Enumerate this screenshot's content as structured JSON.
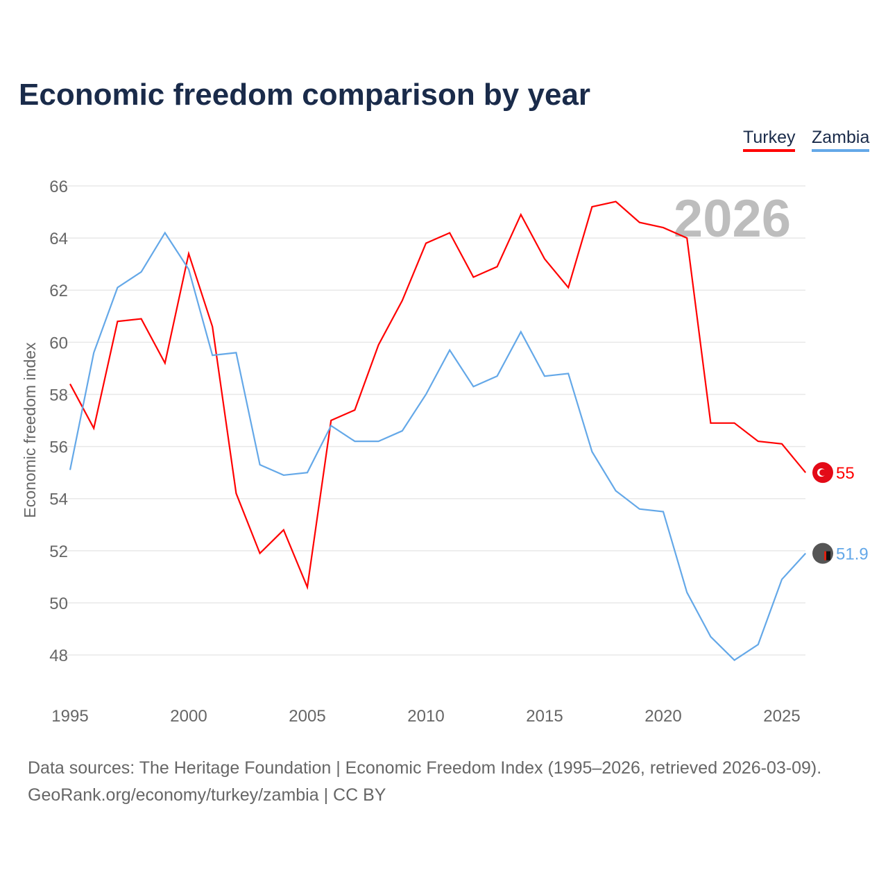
{
  "chart_data": {
    "type": "line",
    "title": "Economic freedom comparison by year",
    "xlabel": "",
    "ylabel": "Economic freedom index",
    "xlim": [
      1995,
      2026
    ],
    "ylim": [
      47,
      66.5
    ],
    "yticks": [
      48,
      50,
      52,
      54,
      56,
      58,
      60,
      62,
      64,
      66
    ],
    "xticks": [
      1995,
      2000,
      2005,
      2010,
      2015,
      2020,
      2025
    ],
    "grid": true,
    "legend_position": "top-right",
    "year_annotation": "2026",
    "x": [
      1995,
      1996,
      1997,
      1998,
      1999,
      2000,
      2001,
      2002,
      2003,
      2004,
      2005,
      2006,
      2007,
      2008,
      2009,
      2010,
      2011,
      2012,
      2013,
      2014,
      2015,
      2016,
      2017,
      2018,
      2019,
      2020,
      2021,
      2022,
      2023,
      2024,
      2025,
      2026
    ],
    "series": [
      {
        "name": "Turkey",
        "color": "#ff0000",
        "end_label": "55",
        "values": [
          58.4,
          56.7,
          60.8,
          60.9,
          59.2,
          63.4,
          60.6,
          54.2,
          51.9,
          52.8,
          50.6,
          57.0,
          57.4,
          59.9,
          61.6,
          63.8,
          64.2,
          62.5,
          62.9,
          64.9,
          63.2,
          62.1,
          65.2,
          65.4,
          64.6,
          64.4,
          64.0,
          56.9,
          56.9,
          56.2,
          56.1,
          55.0
        ]
      },
      {
        "name": "Zambia",
        "color": "#64a8e8",
        "end_label": "51.9",
        "values": [
          55.1,
          59.6,
          62.1,
          62.7,
          64.2,
          62.8,
          59.5,
          59.6,
          55.3,
          54.9,
          55.0,
          56.8,
          56.2,
          56.2,
          56.6,
          58.0,
          59.7,
          58.3,
          58.7,
          60.4,
          58.7,
          58.8,
          55.8,
          54.3,
          53.6,
          53.5,
          50.4,
          48.7,
          47.8,
          48.4,
          50.9,
          51.9
        ]
      }
    ]
  },
  "source": {
    "line1": "Data sources: The Heritage Foundation | Economic Freedom Index (1995–2026, retrieved 2026-03-09).",
    "line2": "GeoRank.org/economy/turkey/zambia | CC BY"
  }
}
